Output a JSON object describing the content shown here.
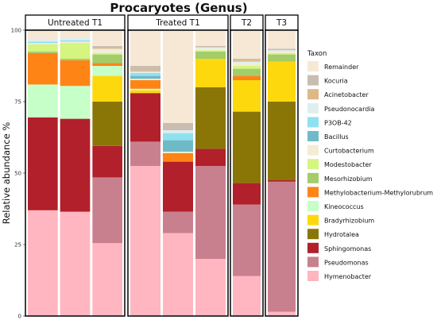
{
  "chart_data": {
    "type": "bar",
    "stacked": true,
    "title": "Procaryotes (Genus)",
    "xlabel": "",
    "ylabel": "Relative abundance %",
    "ylim": [
      0,
      100
    ],
    "yticks": [
      0,
      25,
      50,
      75,
      100
    ],
    "legend_title": "Taxon",
    "legend_position": "right",
    "series_order_bottom_to_top": [
      "Hymenobacter",
      "Pseudomonas",
      "Sphingomonas",
      "Hydrotalea",
      "Bradyrhizobium",
      "Kineococcus",
      "Methylobacterium-Methylorubrum",
      "Mesorhizobium",
      "Modestobacter",
      "Curtobacterium",
      "Bacillus",
      "P3OB-42",
      "Pseudonocardia",
      "Acinetobacter",
      "Kocuria",
      "Remainder"
    ],
    "legend_order": [
      "Remainder",
      "Kocuria",
      "Acinetobacter",
      "Pseudonocardia",
      "P3OB-42",
      "Bacillus",
      "Curtobacterium",
      "Modestobacter",
      "Mesorhizobium",
      "Methylobacterium-Methylorubrum",
      "Kineococcus",
      "Bradyrhizobium",
      "Hydrotalea",
      "Sphingomonas",
      "Pseudomonas",
      "Hymenobacter"
    ],
    "colors": {
      "Remainder": "#f7e8d6",
      "Kocuria": "#c9bdb0",
      "Acinetobacter": "#deb887",
      "Pseudonocardia": "#e0eeee",
      "P3OB-42": "#8fe1f0",
      "Bacillus": "#6fbac6",
      "Curtobacterium": "#f2edd3",
      "Modestobacter": "#d4f580",
      "Mesorhizobium": "#a3cc6a",
      "Methylobacterium-Methylorubrum": "#fe8416",
      "Kineococcus": "#c6ffc8",
      "Bradyrhizobium": "#fdd80d",
      "Hydrotalea": "#8a7607",
      "Sphingomonas": "#b1202b",
      "Pseudomonas": "#c9808e",
      "Hymenobacter": "#ffb6c1"
    },
    "groups": [
      {
        "label": "Untreated T1",
        "bars": [
          {
            "Hymenobacter": 37,
            "Pseudomonas": 0,
            "Sphingomonas": 32.5,
            "Hydrotalea": 0,
            "Bradyrhizobium": 0,
            "Kineococcus": 11.5,
            "Methylobacterium-Methylorubrum": 11,
            "Mesorhizobium": 0.5,
            "Modestobacter": 2.5,
            "Curtobacterium": 0.5,
            "Bacillus": 0,
            "P3OB-42": 0.5,
            "Pseudonocardia": 1,
            "Acinetobacter": 0,
            "Kocuria": 0,
            "Remainder": 3
          },
          {
            "Hymenobacter": 36.5,
            "Pseudomonas": 0,
            "Sphingomonas": 32.5,
            "Hydrotalea": 0,
            "Bradyrhizobium": 0,
            "Kineococcus": 11.5,
            "Methylobacterium-Methylorubrum": 9,
            "Mesorhizobium": 0.5,
            "Modestobacter": 5.5,
            "Curtobacterium": 0.5,
            "Bacillus": 0,
            "P3OB-42": 0.5,
            "Pseudonocardia": 1,
            "Acinetobacter": 0,
            "Kocuria": 0,
            "Remainder": 2.5
          },
          {
            "Hymenobacter": 25.5,
            "Pseudomonas": 23,
            "Sphingomonas": 11,
            "Hydrotalea": 15.5,
            "Bradyrhizobium": 9,
            "Kineococcus": 3.5,
            "Methylobacterium-Methylorubrum": 1,
            "Mesorhizobium": 3,
            "Modestobacter": 0.5,
            "Curtobacterium": 1,
            "Bacillus": 0,
            "P3OB-42": 0,
            "Pseudonocardia": 0.5,
            "Acinetobacter": 0.5,
            "Kocuria": 0.5,
            "Remainder": 5.5
          }
        ]
      },
      {
        "label": "Treated T1",
        "bars": [
          {
            "Hymenobacter": 52.5,
            "Pseudomonas": 8.5,
            "Sphingomonas": 17,
            "Hydrotalea": 0,
            "Bradyrhizobium": 1,
            "Kineococcus": 0.5,
            "Methylobacterium-Methylorubrum": 3,
            "Mesorhizobium": 0,
            "Modestobacter": 0,
            "Curtobacterium": 0.5,
            "Bacillus": 1,
            "P3OB-42": 1,
            "Pseudonocardia": 0.5,
            "Acinetobacter": 0.5,
            "Kocuria": 1.5,
            "Remainder": 12.5
          },
          {
            "Hymenobacter": 29,
            "Pseudomonas": 7.5,
            "Sphingomonas": 17.5,
            "Hydrotalea": 0,
            "Bradyrhizobium": 0,
            "Kineococcus": 0,
            "Methylobacterium-Methylorubrum": 3,
            "Mesorhizobium": 0,
            "Modestobacter": 0,
            "Curtobacterium": 0.5,
            "Bacillus": 4,
            "P3OB-42": 2.5,
            "Pseudonocardia": 1,
            "Acinetobacter": 0,
            "Kocuria": 2.5,
            "Remainder": 32.5
          },
          {
            "Hymenobacter": 20,
            "Pseudomonas": 32.5,
            "Sphingomonas": 6,
            "Hydrotalea": 21.5,
            "Bradyrhizobium": 10,
            "Kineococcus": 0,
            "Methylobacterium-Methylorubrum": 0,
            "Mesorhizobium": 2.5,
            "Modestobacter": 0.5,
            "Curtobacterium": 0.5,
            "Bacillus": 0,
            "P3OB-42": 0,
            "Pseudonocardia": 0.5,
            "Acinetobacter": 0,
            "Kocuria": 0.5,
            "Remainder": 5.5
          }
        ]
      },
      {
        "label": "T2",
        "bars": [
          {
            "Hymenobacter": 14,
            "Pseudomonas": 25,
            "Sphingomonas": 7.5,
            "Hydrotalea": 25,
            "Bradyrhizobium": 11,
            "Kineococcus": 0,
            "Methylobacterium-Methylorubrum": 1.5,
            "Mesorhizobium": 2.5,
            "Modestobacter": 1,
            "Curtobacterium": 1,
            "Bacillus": 0,
            "P3OB-42": 0,
            "Pseudonocardia": 0.5,
            "Acinetobacter": 0.5,
            "Kocuria": 0.5,
            "Remainder": 10
          }
        ]
      },
      {
        "label": "T3",
        "bars": [
          {
            "Hymenobacter": 1.5,
            "Pseudomonas": 45.5,
            "Sphingomonas": 0.5,
            "Hydrotalea": 27.5,
            "Bradyrhizobium": 14,
            "Kineococcus": 0,
            "Methylobacterium-Methylorubrum": 0,
            "Mesorhizobium": 2.5,
            "Modestobacter": 0.5,
            "Curtobacterium": 0.5,
            "Bacillus": 0,
            "P3OB-42": 0,
            "Pseudonocardia": 0.5,
            "Acinetobacter": 0,
            "Kocuria": 0.5,
            "Remainder": 6.5
          }
        ]
      }
    ]
  }
}
